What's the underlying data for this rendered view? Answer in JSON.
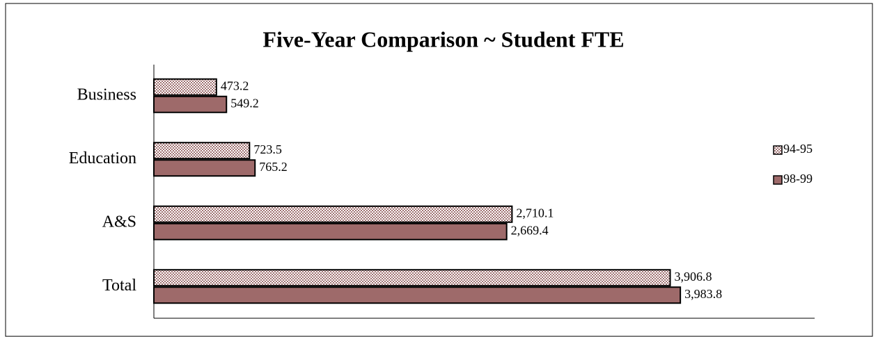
{
  "chart_data": {
    "type": "hbar",
    "title": "Five-Year Comparison ~ Student FTE",
    "categories": [
      "Business",
      "Education",
      "A&S",
      "Total"
    ],
    "series": [
      {
        "name": "94-95",
        "color": "#a07272",
        "pattern": "checker",
        "values": [
          473.2,
          723.5,
          2710.1,
          3906.8
        ],
        "value_labels": [
          "473.2",
          "723.5",
          "2,710.1",
          "3,906.8"
        ]
      },
      {
        "name": "98-99",
        "color": "#9e6a6a",
        "values": [
          549.2,
          765.2,
          2669.4,
          3983.8
        ],
        "value_labels": [
          "549.2",
          "765.2",
          "2,669.4",
          "3,983.8"
        ]
      }
    ],
    "xlim": [
      0,
      5000
    ],
    "legend": "right"
  }
}
